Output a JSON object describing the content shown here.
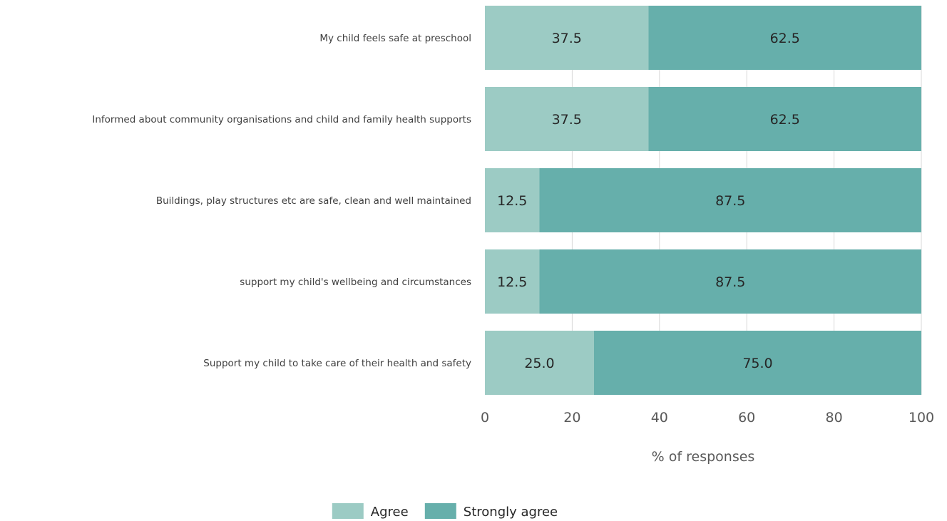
{
  "chart_data": {
    "type": "bar",
    "orientation": "horizontal",
    "stacked": true,
    "categories": [
      "My child feels safe at preschool",
      "Informed about community organisations and child and family health supports",
      "Buildings, play structures etc are safe, clean and well maintained",
      "support my child's wellbeing and circumstances",
      "Support my child to take care of their health and safety"
    ],
    "series": [
      {
        "name": "Agree",
        "color": "#9CCBC4",
        "values": [
          37.5,
          37.5,
          12.5,
          12.5,
          25.0
        ],
        "labels": [
          "37.5",
          "37.5",
          "12.5",
          "12.5",
          "25.0"
        ]
      },
      {
        "name": "Strongly agree",
        "color": "#66AFAB",
        "values": [
          62.5,
          62.5,
          87.5,
          87.5,
          75.0
        ],
        "labels": [
          "62.5",
          "62.5",
          "87.5",
          "87.5",
          "75.0"
        ]
      }
    ],
    "xlabel": "% of responses",
    "xlim": [
      0,
      100
    ],
    "xticks": [
      0,
      20,
      40,
      60,
      80,
      100
    ],
    "xtick_labels": [
      "0",
      "20",
      "40",
      "60",
      "80",
      "100"
    ],
    "grid": "vertical",
    "legend_position": "bottom"
  }
}
